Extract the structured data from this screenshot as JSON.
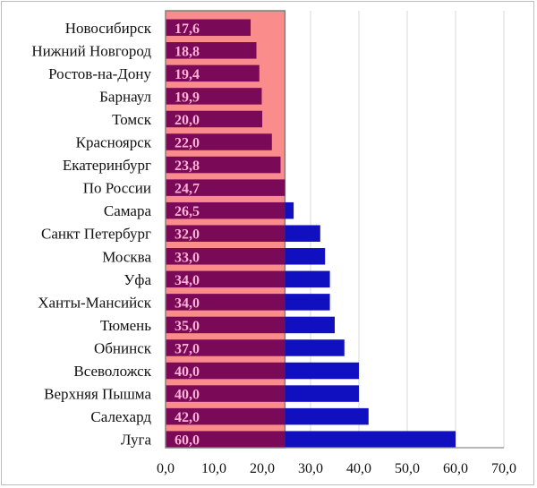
{
  "chart_data": {
    "type": "bar",
    "orientation": "horizontal",
    "categories": [
      "Новосибирск",
      "Нижний Новгород",
      "Ростов-на-Дону",
      "Барнаул",
      "Томск",
      "Красноярск",
      "Екатеринбург",
      "По России",
      "Самара",
      "Санкт Петербург",
      "Москва",
      "Уфа",
      "Ханты-Мансийск",
      "Тюмень",
      "Обнинск",
      "Всеволожск",
      "Верхняя Пышма",
      "Салехард",
      "Луга"
    ],
    "values": [
      17.6,
      18.8,
      19.4,
      19.9,
      20.0,
      22.0,
      23.8,
      24.7,
      26.5,
      32.0,
      33.0,
      34.0,
      34.0,
      35.0,
      37.0,
      40.0,
      40.0,
      42.0,
      60.0
    ],
    "data_labels": [
      "17,6",
      "18,8",
      "19,4",
      "19,9",
      "20,0",
      "22,0",
      "23,8",
      "24,7",
      "26,5",
      "32,0",
      "33,0",
      "34,0",
      "34,0",
      "35,0",
      "37,0",
      "40,0",
      "40,0",
      "42,0",
      "60,0"
    ],
    "xticks": [
      0,
      10,
      20,
      30,
      40,
      50,
      60,
      70
    ],
    "xtick_labels": [
      "0,0",
      "10,0",
      "20,0",
      "30,0",
      "40,0",
      "50,0",
      "60,0",
      "70,0"
    ],
    "xlim": [
      0,
      70
    ],
    "highlight_range": [
      0,
      24.7
    ],
    "grid": "vertical",
    "title": "",
    "xlabel": "",
    "ylabel": "",
    "colors": {
      "bar_inside_highlight": "#7a0a57",
      "bar_outside_highlight": "#1010c0",
      "highlight_fill": "#fa8c8c",
      "highlight_border": "#7d7d7d",
      "data_label": "#ffb2d6",
      "gridline": "#d9d9d9",
      "axis": "#8c8c8c"
    }
  }
}
